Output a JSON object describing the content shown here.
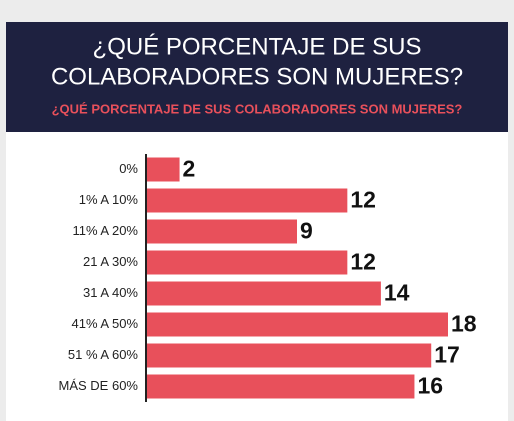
{
  "chart_data": {
    "type": "bar",
    "orientation": "horizontal",
    "title": [
      "¿QUÉ PORCENTAJE DE SUS",
      "COLABORADORES SON MUJERES?"
    ],
    "subtitle": "¿QUÉ PORCENTAJE DE SUS COLABORADORES SON MUJERES?",
    "categories": [
      "0%",
      "1% A 10%",
      "11% A 20%",
      "21 A 30%",
      "31 A 40%",
      "41% A 50%",
      "51 % A 60%",
      "MÁS DE 60%"
    ],
    "values": [
      2,
      12,
      9,
      12,
      14,
      18,
      17,
      16
    ],
    "color": "#e8505b"
  }
}
